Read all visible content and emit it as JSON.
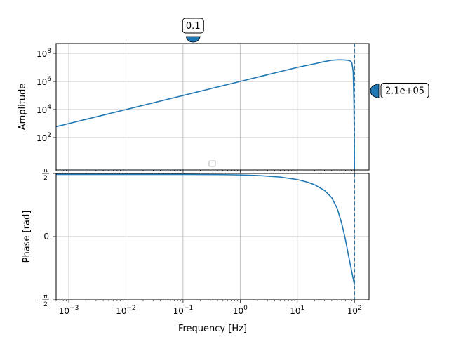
{
  "chart_data": [
    {
      "type": "line",
      "panel": "amplitude",
      "ylabel": "Amplitude",
      "y_scale": "log",
      "x_scale": "log",
      "ylim": [
        0.5,
        500000000
      ],
      "xlim": [
        0.0006,
        180
      ],
      "yticks": [
        100,
        10000,
        1000000,
        100000000
      ],
      "ytick_base": "10",
      "ytick_exponents": [
        "2",
        "4",
        "6",
        "8"
      ],
      "grid": true,
      "series": [
        {
          "color": "#1f77b4",
          "x": [
            0.0006,
            0.001,
            0.01,
            0.1,
            1,
            10,
            20,
            30,
            40,
            50,
            60,
            70,
            80,
            85,
            90,
            95,
            98,
            99,
            100
          ],
          "y": [
            600,
            1000,
            10000,
            100000,
            1000000,
            10000000,
            18000000,
            26000000,
            32000000,
            34000000,
            34000000,
            33000000,
            31000000,
            28000000,
            22000000,
            5000000,
            30000,
            200,
            0.5
          ]
        }
      ],
      "vline_x": 100,
      "legend_placement": "lower-center"
    },
    {
      "type": "line",
      "panel": "phase",
      "ylabel": "Phase [rad]",
      "xlabel": "Frequency [Hz]",
      "x_scale": "log",
      "xlim": [
        0.0006,
        180
      ],
      "ylim": [
        -1.5708,
        1.5708
      ],
      "yticks": [
        {
          "value": 1.5708,
          "label": "π/2",
          "num": "π",
          "den": "2",
          "sign": ""
        },
        {
          "value": 0,
          "label": "0",
          "num": "",
          "den": "",
          "sign": ""
        },
        {
          "value": -1.5708,
          "label": "−π/2",
          "num": "π",
          "den": "2",
          "sign": "−"
        }
      ],
      "xticks": [
        0.001,
        0.01,
        0.1,
        1,
        10,
        100
      ],
      "xtick_base": "10",
      "xtick_exponents": [
        "−3",
        "−2",
        "−1",
        "0",
        "1",
        "2"
      ],
      "grid": true,
      "series": [
        {
          "color": "#1f77b4",
          "x": [
            0.0006,
            0.01,
            0.1,
            0.5,
            1,
            2,
            5,
            10,
            15,
            20,
            30,
            40,
            50,
            60,
            70,
            80,
            90,
            100
          ],
          "y": [
            1.5454,
            1.5464,
            1.5456,
            1.5403,
            1.5336,
            1.5205,
            1.4813,
            1.4183,
            1.3554,
            1.2901,
            1.1476,
            0.9688,
            0.6972,
            0.3245,
            -0.0926,
            -0.5238,
            -0.8821,
            -1.1983
          ]
        }
      ],
      "vline_x": 100
    }
  ],
  "widgets": {
    "top_handle_value": "0.1",
    "top_handle_x": 0.15,
    "right_handle_value": "2.1e+05",
    "right_handle_y": 210000,
    "accent_color": "#1f77b4"
  }
}
